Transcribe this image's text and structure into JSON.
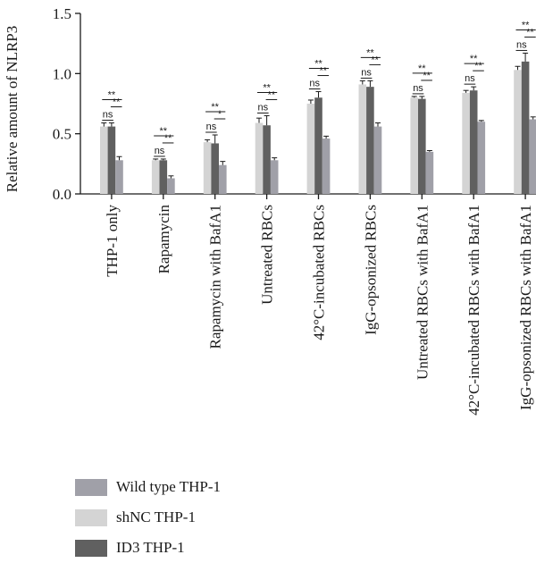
{
  "chart_data": {
    "type": "bar",
    "title": "",
    "xlabel": "",
    "ylabel": "Relative amount of NLRP3",
    "ylim": [
      0,
      1.5
    ],
    "yticks": [
      "0.0",
      "0.5",
      "1.0",
      "1.5"
    ],
    "grid": false,
    "legend_position": "bottom-left",
    "categories": [
      "THP-1 only",
      "Rapamycin",
      "Rapamycin with BafA1",
      "Untreated RBCs",
      "42°C-incubated RBCs",
      "IgG-opsonized RBCs",
      "Untreated RBCs with BafA1",
      "42°C-incubated RBCs with BafA1",
      "IgG-opsonized RBCs with BafA1"
    ],
    "series": [
      {
        "name": "shNC THP-1",
        "color": "#d4d4d4",
        "values": [
          0.56,
          0.28,
          0.43,
          0.59,
          0.75,
          0.91,
          0.8,
          0.84,
          1.03
        ],
        "errors": [
          0.03,
          0.01,
          0.02,
          0.04,
          0.03,
          0.03,
          0.01,
          0.02,
          0.03
        ]
      },
      {
        "name": "ID3 THP-1",
        "color": "#606060",
        "values": [
          0.56,
          0.28,
          0.42,
          0.57,
          0.8,
          0.89,
          0.79,
          0.86,
          1.1
        ],
        "errors": [
          0.03,
          0.01,
          0.07,
          0.08,
          0.05,
          0.05,
          0.02,
          0.03,
          0.07
        ]
      },
      {
        "name": "Wild type THP-1",
        "color": "#a0a0a8",
        "values": [
          0.28,
          0.13,
          0.24,
          0.28,
          0.46,
          0.56,
          0.35,
          0.6,
          0.62
        ],
        "errors": [
          0.03,
          0.02,
          0.03,
          0.02,
          0.02,
          0.03,
          0.01,
          0.01,
          0.02
        ]
      }
    ],
    "significance": [
      {
        "ns": "ns",
        "outer": "**",
        "inner": "**"
      },
      {
        "ns": "ns",
        "outer": "**",
        "inner": "**"
      },
      {
        "ns": "ns",
        "outer": "**",
        "inner": "*"
      },
      {
        "ns": "ns",
        "outer": "**",
        "inner": "**"
      },
      {
        "ns": "ns",
        "outer": "**",
        "inner": "**"
      },
      {
        "ns": "ns",
        "outer": "**",
        "inner": "**"
      },
      {
        "ns": "ns",
        "outer": "**",
        "inner": "**"
      },
      {
        "ns": "ns",
        "outer": "**",
        "inner": "**"
      },
      {
        "ns": "ns",
        "outer": "**",
        "inner": "**"
      }
    ]
  },
  "legend": {
    "items": [
      {
        "label": "Wild type THP-1",
        "color": "#a0a0a8"
      },
      {
        "label": "shNC THP-1",
        "color": "#d4d4d4"
      },
      {
        "label": "ID3 THP-1",
        "color": "#606060"
      }
    ]
  }
}
